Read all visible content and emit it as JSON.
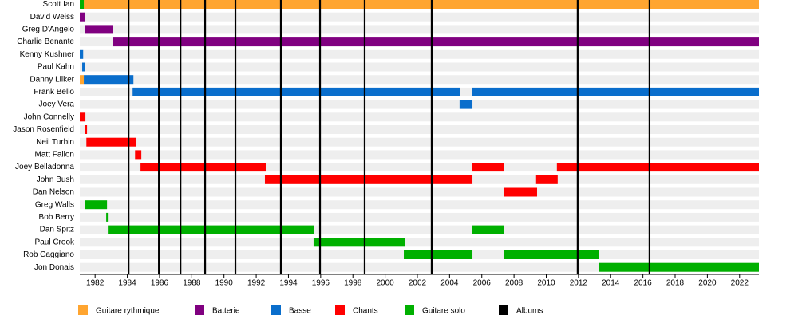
{
  "chart_data": {
    "type": "timeline",
    "categories": [
      "Scott Ian",
      "David Weiss",
      "Greg D'Angelo",
      "Charlie Benante",
      "Kenny Kushner",
      "Paul Kahn",
      "Danny Lilker",
      "Frank Bello",
      "Joey Vera",
      "John Connelly",
      "Jason Rosenfield",
      "Neil Turbin",
      "Matt Fallon",
      "Joey Belladonna",
      "John Bush",
      "Dan Nelson",
      "Greg Walls",
      "Bob Berry",
      "Dan Spitz",
      "Paul Crook",
      "Rob Caggiano",
      "Jon Donais"
    ],
    "series": [
      {
        "name": "Guitare rythmique",
        "color": "#ffa530",
        "values": [
          [
            [
              1981.3,
              2023.2
            ]
          ],
          null,
          null,
          null,
          null,
          null,
          [
            [
              1981.05,
              1981.3
            ]
          ],
          null,
          null,
          null,
          null,
          null,
          null,
          null,
          null,
          null,
          null,
          null,
          null,
          null,
          null,
          null
        ]
      },
      {
        "name": "Batterie",
        "color": "#800080",
        "values": [
          null,
          [
            [
              1981.05,
              1981.36
            ]
          ],
          [
            [
              1981.36,
              1983.09
            ]
          ],
          [
            [
              1983.09,
              2023.2
            ]
          ],
          null,
          null,
          null,
          null,
          null,
          null,
          null,
          null,
          null,
          null,
          null,
          null,
          null,
          null,
          null,
          null,
          null,
          null
        ]
      },
      {
        "name": "Basse",
        "color": "#0a6ecc",
        "values": [
          null,
          null,
          null,
          null,
          [
            [
              1981.05,
              1981.26
            ]
          ],
          [
            [
              1981.2,
              1981.36
            ]
          ],
          [
            [
              1981.3,
              1984.38
            ]
          ],
          [
            [
              1984.33,
              2004.67
            ],
            [
              2005.37,
              2023.2
            ]
          ],
          [
            [
              2004.62,
              2005.42
            ]
          ],
          null,
          null,
          null,
          null,
          null,
          null,
          null,
          null,
          null,
          null,
          null,
          null,
          null
        ]
      },
      {
        "name": "Chants",
        "color": "#ff0000",
        "values": [
          null,
          null,
          null,
          null,
          null,
          null,
          null,
          null,
          null,
          [
            [
              1981.05,
              1981.4
            ]
          ],
          [
            [
              1981.36,
              1981.5
            ]
          ],
          [
            [
              1981.46,
              1984.52
            ]
          ],
          [
            [
              1984.48,
              1984.87
            ]
          ],
          [
            [
              1984.82,
              1992.59
            ],
            [
              2005.37,
              2007.4
            ],
            [
              2010.66,
              2023.2
            ]
          ],
          [
            [
              1992.54,
              2005.42
            ],
            [
              2009.37,
              2010.71
            ]
          ],
          [
            [
              2007.35,
              2009.43
            ]
          ],
          null,
          null,
          null,
          null,
          null,
          null
        ]
      },
      {
        "name": "Guitare solo",
        "color": "#00b000",
        "values": [
          [
            [
              1981.05,
              1981.3
            ]
          ],
          null,
          null,
          null,
          null,
          null,
          null,
          null,
          null,
          null,
          null,
          null,
          null,
          null,
          null,
          null,
          [
            [
              1981.36,
              1982.74
            ]
          ],
          [
            [
              1982.69,
              1982.79
            ]
          ],
          [
            [
              1982.79,
              1995.61
            ],
            [
              2005.37,
              2007.4
            ]
          ],
          [
            [
              1995.56,
              2001.21
            ]
          ],
          [
            [
              2001.16,
              2005.42
            ],
            [
              2007.35,
              2013.29
            ]
          ],
          [
            [
              2013.29,
              2023.2
            ]
          ]
        ]
      }
    ],
    "markers": {
      "name": "Albums",
      "color": "#000000",
      "values": [
        1984.08,
        1985.96,
        1987.3,
        1988.83,
        1990.71,
        1993.53,
        1995.96,
        1998.73,
        2002.89,
        2011.95,
        2016.41
      ]
    },
    "xlim": [
      1981.05,
      2023.2
    ],
    "xticks": [
      1982,
      1984,
      1986,
      1988,
      1990,
      1992,
      1994,
      1996,
      1998,
      2000,
      2002,
      2004,
      2006,
      2008,
      2010,
      2012,
      2014,
      2016,
      2018,
      2020,
      2022
    ]
  }
}
